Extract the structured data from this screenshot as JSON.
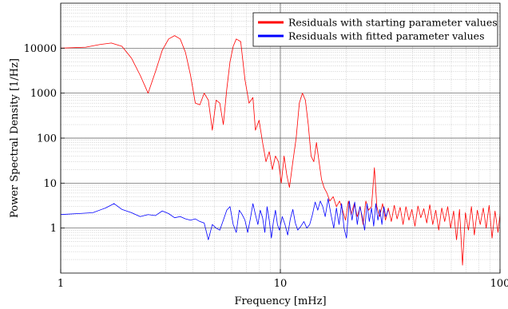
{
  "chart_data": {
    "type": "line",
    "xlabel": "Frequency [mHz]",
    "ylabel": "Power Spectral Density [1/Hz]",
    "x_scale": "log",
    "y_scale": "log",
    "xlim": [
      1,
      100
    ],
    "ylim": [
      0.1,
      100000
    ],
    "x_ticks": [
      1,
      10,
      100
    ],
    "x_tick_labels": [
      "1",
      "10",
      "100"
    ],
    "y_ticks": [
      1,
      10,
      100,
      1000,
      10000
    ],
    "y_tick_labels": [
      "1",
      "10",
      "100",
      "1000",
      "10000"
    ],
    "grid": true,
    "legend_position": "top-right",
    "series": [
      {
        "name": "Residuals with starting parameter values",
        "color": "#ff0000",
        "x": [
          1,
          1.3,
          1.5,
          1.7,
          1.9,
          2.1,
          2.3,
          2.5,
          2.7,
          2.9,
          3.1,
          3.3,
          3.5,
          3.7,
          3.9,
          4.1,
          4.3,
          4.5,
          4.7,
          4.9,
          5.1,
          5.3,
          5.5,
          5.7,
          5.9,
          6.1,
          6.3,
          6.6,
          6.9,
          7.2,
          7.5,
          7.7,
          8.0,
          8.3,
          8.6,
          8.9,
          9.2,
          9.5,
          9.8,
          10.1,
          10.4,
          10.7,
          11.0,
          11.4,
          11.8,
          12.2,
          12.6,
          13.0,
          13.4,
          13.8,
          14.2,
          14.6,
          15.0,
          15.4,
          15.8,
          16.3,
          16.8,
          17.4,
          18.0,
          18.6,
          19.2,
          19.8,
          20.4,
          21.0,
          21.7,
          22.4,
          23.1,
          23.8,
          24.5,
          25.2,
          26.0,
          26.8,
          27.5,
          28.3,
          29.2,
          30.1,
          31.0,
          32.0,
          33.0,
          34.0,
          35.1,
          36.2,
          37.3,
          38.5,
          39.7,
          41.0,
          42.3,
          43.6,
          45.0,
          46.4,
          47.9,
          49.4,
          51.0,
          52.6,
          54.3,
          56.0,
          57.8,
          59.6,
          61.5,
          63.4,
          65.4,
          67.5,
          69.6,
          71.8,
          74.1,
          76.4,
          78.8,
          81.3,
          83.9,
          86.5,
          89.2,
          92.0,
          94.9,
          97.9,
          100
        ],
        "values": [
          10000,
          10500,
          12000,
          13000,
          11000,
          6000,
          2500,
          1000,
          3000,
          9000,
          16000,
          19000,
          16000,
          8000,
          2500,
          600,
          550,
          1000,
          700,
          150,
          700,
          600,
          200,
          1200,
          5000,
          11000,
          16000,
          14000,
          2000,
          600,
          800,
          150,
          250,
          80,
          30,
          50,
          20,
          40,
          30,
          10,
          40,
          15,
          8,
          30,
          100,
          600,
          1000,
          700,
          200,
          40,
          30,
          80,
          30,
          12,
          8,
          6,
          4,
          5,
          3,
          4,
          2.5,
          1.5,
          4,
          2,
          3.5,
          1.8,
          3,
          1.2,
          4,
          2.5,
          3,
          22,
          3,
          1.8,
          3.5,
          1.5,
          2.8,
          1.4,
          3.2,
          1.6,
          2.9,
          1.2,
          3.0,
          1.5,
          2.6,
          1.1,
          3.1,
          1.7,
          2.7,
          1.3,
          3.3,
          1.2,
          2.5,
          0.9,
          2.8,
          1.4,
          3.0,
          1.0,
          2.4,
          0.55,
          2.6,
          0.15,
          2.2,
          0.9,
          3.0,
          0.7,
          2.5,
          1.2,
          2.8,
          1.0,
          3.2,
          0.6,
          2.4,
          0.8,
          2.0
        ]
      },
      {
        "name": "Residuals with fitted parameter values",
        "color": "#0000ff",
        "x": [
          1,
          1.2,
          1.4,
          1.6,
          1.75,
          1.9,
          2.1,
          2.3,
          2.5,
          2.7,
          2.9,
          3.1,
          3.3,
          3.5,
          3.7,
          3.9,
          4.1,
          4.3,
          4.5,
          4.7,
          4.9,
          5.1,
          5.3,
          5.5,
          5.7,
          5.9,
          6.1,
          6.3,
          6.5,
          6.7,
          6.9,
          7.1,
          7.3,
          7.5,
          7.7,
          7.9,
          8.1,
          8.3,
          8.5,
          8.7,
          8.9,
          9.1,
          9.3,
          9.5,
          9.7,
          9.9,
          10.2,
          10.5,
          10.8,
          11.1,
          11.4,
          11.7,
          12.0,
          12.4,
          12.8,
          13.2,
          13.6,
          14.0,
          14.4,
          14.8,
          15.2,
          15.6,
          16.0,
          16.5,
          17.0,
          17.5,
          18.0,
          18.5,
          19.0,
          19.5,
          20.0,
          20.6,
          21.2,
          21.8,
          22.4,
          23.0,
          23.6,
          24.2,
          24.8,
          25.4,
          26.0,
          26.6,
          27.2,
          27.8,
          28.4,
          29.0,
          29.6,
          30.2,
          31
        ],
        "values": [
          2.0,
          2.1,
          2.2,
          2.8,
          3.5,
          2.6,
          2.2,
          1.8,
          2.0,
          1.9,
          2.4,
          2.1,
          1.7,
          1.8,
          1.6,
          1.5,
          1.6,
          1.4,
          1.3,
          0.55,
          1.2,
          1.0,
          0.9,
          1.5,
          2.5,
          3.0,
          1.2,
          0.8,
          2.5,
          2.0,
          1.5,
          0.8,
          1.6,
          3.5,
          2.0,
          1.2,
          2.5,
          1.7,
          0.8,
          3.0,
          1.5,
          0.6,
          1.4,
          2.5,
          1.2,
          0.9,
          1.8,
          1.2,
          0.7,
          1.6,
          2.6,
          1.3,
          0.9,
          1.1,
          1.4,
          1.0,
          1.2,
          2.0,
          3.8,
          2.5,
          4.0,
          3.0,
          1.8,
          4.5,
          2.0,
          1.0,
          2.8,
          1.2,
          3.5,
          1.0,
          0.6,
          4.0,
          1.5,
          3.8,
          1.2,
          3.0,
          1.8,
          0.9,
          3.5,
          1.4,
          2.8,
          1.1,
          3.5,
          1.5,
          2.6,
          1.2,
          3.0,
          1.8,
          2.5
        ]
      }
    ]
  }
}
